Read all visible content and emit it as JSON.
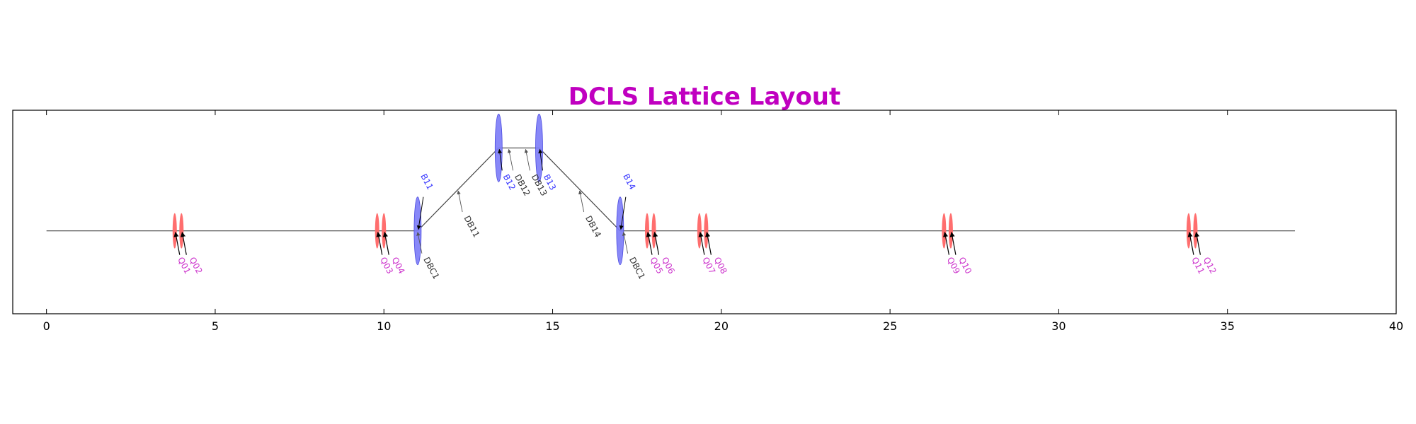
{
  "chart_data": {
    "type": "scatter",
    "title": "DCLS Lattice Layout",
    "xlabel": "",
    "ylabel": "",
    "xlim": [
      -1,
      40
    ],
    "ylim": [
      -1.1,
      1.6
    ],
    "x_ticks": [
      0,
      5,
      10,
      15,
      20,
      25,
      30,
      35,
      40
    ],
    "x_tick_labels": [
      "0",
      "5",
      "10",
      "15",
      "20",
      "25",
      "30",
      "35",
      "40"
    ],
    "y_ticks_shown": false,
    "grid": false,
    "beamline": {
      "name": "",
      "x": [
        0,
        11.0,
        13.4,
        14.6,
        17.0,
        37.0
      ],
      "y": [
        0,
        0,
        1.1,
        1.1,
        0,
        0
      ]
    },
    "quadrupoles": [
      {
        "name": "Q01",
        "s": 3.8
      },
      {
        "name": "Q02",
        "s": 4.0
      },
      {
        "name": "Q03",
        "s": 9.8
      },
      {
        "name": "Q04",
        "s": 10.0
      },
      {
        "name": "Q05",
        "s": 17.8
      },
      {
        "name": "Q06",
        "s": 18.0
      },
      {
        "name": "Q07",
        "s": 19.35
      },
      {
        "name": "Q08",
        "s": 19.55
      },
      {
        "name": "Q09",
        "s": 26.6
      },
      {
        "name": "Q10",
        "s": 26.8
      },
      {
        "name": "Q11",
        "s": 33.85
      },
      {
        "name": "Q12",
        "s": 34.05
      }
    ],
    "dipoles": [
      {
        "name": "B11",
        "s": 11.0,
        "y": 0
      },
      {
        "name": "B12",
        "s": 13.4,
        "y": 1.1
      },
      {
        "name": "B13",
        "s": 14.6,
        "y": 1.1
      },
      {
        "name": "B14",
        "s": 17.0,
        "y": 0
      }
    ],
    "drifts": [
      {
        "name": "DBC1",
        "s": 11.0,
        "y": 0
      },
      {
        "name": "DB11",
        "s": 12.2,
        "y": 0.55
      },
      {
        "name": "DB12",
        "s": 13.7,
        "y": 1.1
      },
      {
        "name": "DB13",
        "s": 14.2,
        "y": 1.1
      },
      {
        "name": "DB14",
        "s": 15.8,
        "y": 0.55
      },
      {
        "name": "DBC1",
        "s": 17.1,
        "y": 0
      }
    ],
    "colors": {
      "title": "#c000c0",
      "quadrupole_fill": "#ff6666",
      "dipole_fill": "#7b7bf7",
      "dipole_edge": "#4a4ae0",
      "quad_label": "#cc33cc",
      "dipole_label": "#3a3aff",
      "drift_label": "#333333",
      "beamline": "#444444",
      "axes": "#000000"
    }
  }
}
